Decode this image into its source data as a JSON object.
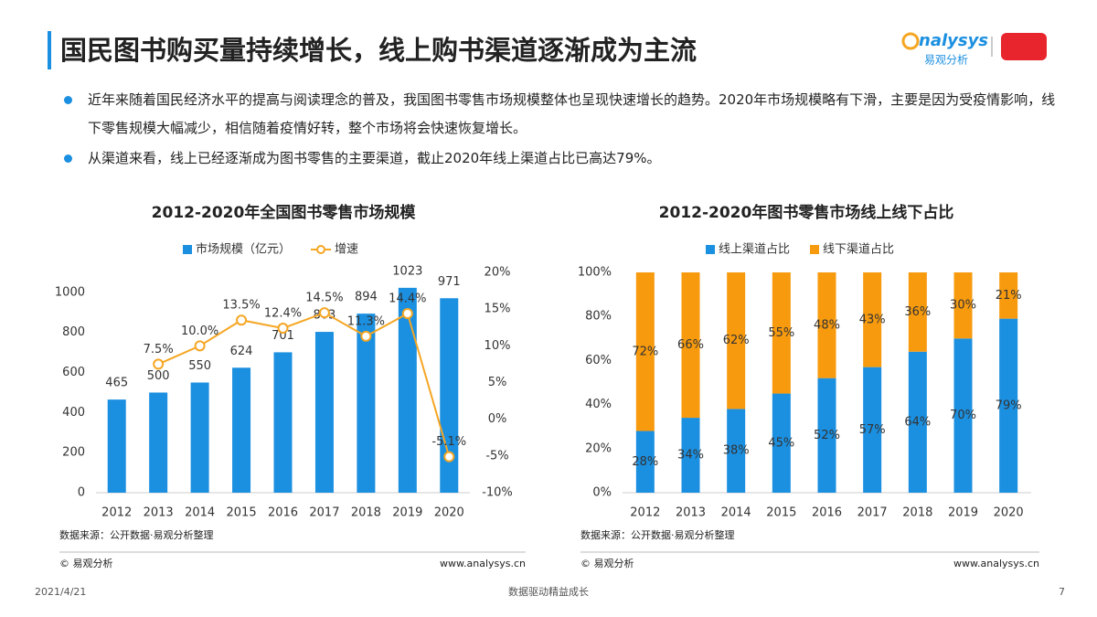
{
  "header": {
    "title": "国民图书购买量持续增长，线上购书渠道逐渐成为主流",
    "logo_text": "nalysys",
    "logo_sub": "易观分析"
  },
  "bullets": [
    "近年来随着国民经济水平的提高与阅读理念的普及，我国图书零售市场规模整体也呈现快速增长的趋势。2020年市场规模略有下滑，主要是因为受疫情影响，线下零售规模大幅减少，相信随着疫情好转，整个市场将会快速恢复增长。",
    "从渠道来看，线上已经逐渐成为图书零售的主要渠道，截止2020年线上渠道占比已高达79%。"
  ],
  "chart_data": [
    {
      "type": "combo",
      "title": "2012-2020年全国图书零售市场规模",
      "categories": [
        "2012",
        "2013",
        "2014",
        "2015",
        "2016",
        "2017",
        "2018",
        "2019",
        "2020"
      ],
      "series": [
        {
          "name": "市场规模（亿元）",
          "type": "bar",
          "color": "#1b8fe0",
          "values": [
            465,
            500,
            550,
            624,
            701,
            803,
            894,
            1023,
            971
          ]
        },
        {
          "name": "增速",
          "type": "line",
          "axis": "y2",
          "color": "#f5a623",
          "values": [
            null,
            7.5,
            10.0,
            13.5,
            12.4,
            14.5,
            11.3,
            14.4,
            -5.1
          ],
          "value_labels": [
            null,
            "7.5%",
            "10.0%",
            "13.5%",
            "12.4%",
            "14.5%",
            "11.3%",
            "14.4%",
            "-5.1%"
          ]
        }
      ],
      "ylim": [
        0,
        1100
      ],
      "yticks": [
        0,
        200,
        400,
        600,
        800,
        1000
      ],
      "y2lim": [
        -10,
        20
      ],
      "y2ticks": [
        {
          "value": -10,
          "label": "-10%"
        },
        {
          "value": -5,
          "label": "-5%"
        },
        {
          "value": 0,
          "label": "0%"
        },
        {
          "value": 5,
          "label": "5%"
        },
        {
          "value": 10,
          "label": "10%"
        },
        {
          "value": 15,
          "label": "15%"
        },
        {
          "value": 20,
          "label": "20%"
        }
      ],
      "legend": "top",
      "source": "数据来源：公开数据·易观分析整理",
      "copyright": "© 易观分析",
      "website": "www.analysys.cn"
    },
    {
      "type": "stacked",
      "title": "2012-2020年图书零售市场线上线下占比",
      "categories": [
        "2012",
        "2013",
        "2014",
        "2015",
        "2016",
        "2017",
        "2018",
        "2019",
        "2020"
      ],
      "series": [
        {
          "name": "线上渠道占比",
          "color": "#1b8fe0",
          "values": [
            28,
            34,
            38,
            45,
            52,
            57,
            64,
            70,
            79
          ],
          "value_labels": [
            "28%",
            "34%",
            "38%",
            "45%",
            "52%",
            "57%",
            "64%",
            "70%",
            "79%"
          ]
        },
        {
          "name": "线下渠道占比",
          "color": "#f79a0e",
          "values": [
            72,
            66,
            62,
            55,
            48,
            43,
            36,
            30,
            21
          ],
          "value_labels": [
            "72%",
            "66%",
            "62%",
            "55%",
            "48%",
            "43%",
            "36%",
            "30%",
            "21%"
          ]
        }
      ],
      "ylim": [
        0,
        100
      ],
      "yticks": [
        {
          "value": 0,
          "label": "0%"
        },
        {
          "value": 20,
          "label": "20%"
        },
        {
          "value": 40,
          "label": "40%"
        },
        {
          "value": 60,
          "label": "60%"
        },
        {
          "value": 80,
          "label": "80%"
        },
        {
          "value": 100,
          "label": "100%"
        }
      ],
      "legend": "top",
      "source": "数据来源：公开数据·易观分析整理",
      "copyright": "© 易观分析",
      "website": "www.analysys.cn"
    }
  ],
  "footer": {
    "date": "2021/4/21",
    "slogan": "数据驱动精益成长",
    "page": "7"
  }
}
